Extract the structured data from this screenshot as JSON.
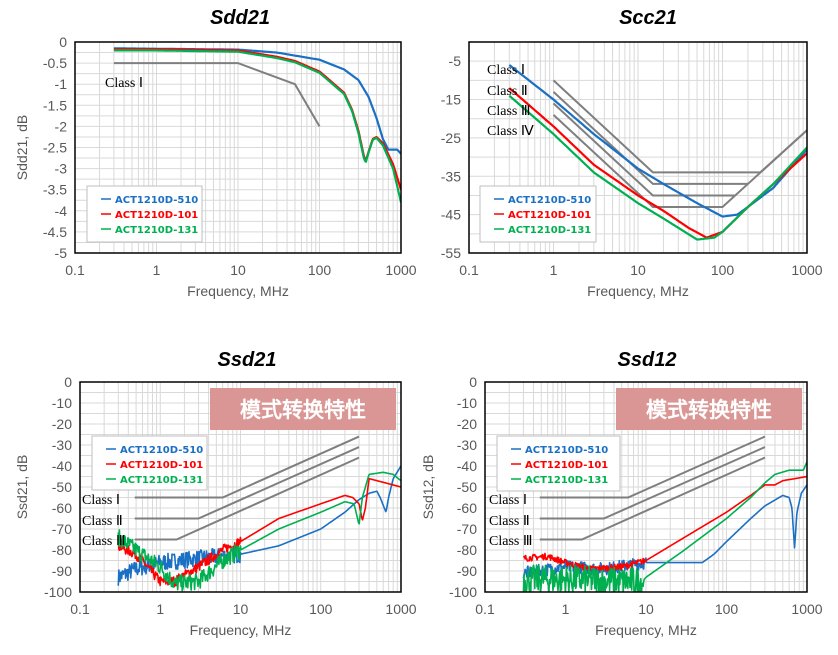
{
  "chart_data": [
    {
      "type": "line",
      "title": "Sdd21",
      "xlabel": "Frequency, MHz",
      "ylabel": "Sdd21, dB",
      "xscale": "log",
      "xlim": [
        0.1,
        1000
      ],
      "xticks": [
        "0.1",
        "1",
        "10",
        "100",
        "1000"
      ],
      "ylim": [
        -5,
        0
      ],
      "yticks": [
        0,
        -0.5,
        -1,
        -1.5,
        -2,
        -2.5,
        -3,
        -3.5,
        -4,
        -4.5,
        -5
      ],
      "grid": true,
      "legend_placement": "bottom-left",
      "series": [
        {
          "name": "ACT1210D-510",
          "color": "#1a70c4",
          "points": [
            [
              0.3,
              -0.15
            ],
            [
              1,
              -0.16
            ],
            [
              10,
              -0.18
            ],
            [
              30,
              -0.25
            ],
            [
              100,
              -0.42
            ],
            [
              200,
              -0.65
            ],
            [
              300,
              -0.9
            ],
            [
              400,
              -1.3
            ],
            [
              500,
              -1.8
            ],
            [
              600,
              -2.3
            ],
            [
              700,
              -2.55
            ],
            [
              800,
              -2.55
            ],
            [
              900,
              -2.55
            ],
            [
              1000,
              -2.65
            ]
          ]
        },
        {
          "name": "ACT1210D-101",
          "color": "#ff0000",
          "points": [
            [
              0.3,
              -0.17
            ],
            [
              1,
              -0.17
            ],
            [
              10,
              -0.2
            ],
            [
              30,
              -0.35
            ],
            [
              50,
              -0.45
            ],
            [
              100,
              -0.7
            ],
            [
              200,
              -1.2
            ],
            [
              250,
              -1.6
            ],
            [
              300,
              -2.1
            ],
            [
              350,
              -2.7
            ],
            [
              370,
              -2.82
            ],
            [
              400,
              -2.6
            ],
            [
              450,
              -2.3
            ],
            [
              500,
              -2.25
            ],
            [
              600,
              -2.4
            ],
            [
              800,
              -2.9
            ],
            [
              1000,
              -3.5
            ]
          ]
        },
        {
          "name": "ACT1210D-131",
          "color": "#00b050",
          "points": [
            [
              0.3,
              -0.2
            ],
            [
              1,
              -0.2
            ],
            [
              10,
              -0.23
            ],
            [
              30,
              -0.38
            ],
            [
              50,
              -0.48
            ],
            [
              100,
              -0.73
            ],
            [
              200,
              -1.23
            ],
            [
              250,
              -1.63
            ],
            [
              300,
              -2.15
            ],
            [
              350,
              -2.75
            ],
            [
              370,
              -2.85
            ],
            [
              400,
              -2.62
            ],
            [
              450,
              -2.32
            ],
            [
              500,
              -2.27
            ],
            [
              600,
              -2.45
            ],
            [
              800,
              -3.0
            ],
            [
              1000,
              -3.8
            ]
          ]
        }
      ],
      "limits": [
        {
          "label": "Class Ⅰ",
          "points": [
            [
              0.3,
              -0.5
            ],
            [
              10,
              -0.5
            ],
            [
              50,
              -1
            ],
            [
              100,
              -2
            ]
          ]
        }
      ]
    },
    {
      "type": "line",
      "title": "Scc21",
      "xlabel": "Frequency, MHz",
      "ylabel": "",
      "xscale": "log",
      "xlim": [
        0.1,
        1000
      ],
      "xticks": [
        "0.1",
        "1",
        "10",
        "100",
        "1000"
      ],
      "ylim": [
        -55,
        0
      ],
      "yticks": [
        -5,
        -15,
        -25,
        -35,
        -45,
        -55
      ],
      "grid": true,
      "legend_placement": "bottom-left",
      "series": [
        {
          "name": "ACT1210D-510",
          "color": "#1a70c4",
          "points": [
            [
              0.3,
              -6
            ],
            [
              1,
              -15
            ],
            [
              3,
              -24
            ],
            [
              10,
              -33
            ],
            [
              20,
              -37
            ],
            [
              50,
              -42
            ],
            [
              100,
              -45.5
            ],
            [
              150,
              -45
            ],
            [
              200,
              -43
            ],
            [
              400,
              -38
            ],
            [
              1000,
              -28
            ]
          ]
        },
        {
          "name": "ACT1210D-101",
          "color": "#ff0000",
          "points": [
            [
              0.3,
              -12
            ],
            [
              1,
              -22
            ],
            [
              3,
              -32
            ],
            [
              10,
              -40
            ],
            [
              20,
              -44
            ],
            [
              40,
              -48.5
            ],
            [
              65,
              -51
            ],
            [
              100,
              -49.5
            ],
            [
              200,
              -43
            ],
            [
              400,
              -37
            ],
            [
              1000,
              -29
            ]
          ]
        },
        {
          "name": "ACT1210D-131",
          "color": "#00b050",
          "points": [
            [
              0.3,
              -14
            ],
            [
              1,
              -24
            ],
            [
              3,
              -34
            ],
            [
              10,
              -42
            ],
            [
              20,
              -46
            ],
            [
              50,
              -51.5
            ],
            [
              80,
              -51
            ],
            [
              100,
              -49.5
            ],
            [
              200,
              -43
            ],
            [
              400,
              -37
            ],
            [
              1000,
              -27.5
            ]
          ]
        }
      ],
      "limits": [
        {
          "label": "Class Ⅰ",
          "points": [
            [
              1,
              -10
            ],
            [
              15,
              -34
            ],
            [
              280,
              -34
            ],
            [
              1000,
              -23
            ]
          ]
        },
        {
          "label": "Class Ⅱ",
          "points": [
            [
              1,
              -13
            ],
            [
              15,
              -37
            ],
            [
              200,
              -37
            ]
          ]
        },
        {
          "label": "Class Ⅲ",
          "points": [
            [
              1,
              -16
            ],
            [
              15,
              -40
            ],
            [
              140,
              -40
            ]
          ]
        },
        {
          "label": "Class Ⅳ",
          "points": [
            [
              1,
              -19
            ],
            [
              15,
              -43
            ],
            [
              100,
              -43
            ],
            [
              1000,
              -23
            ]
          ]
        }
      ]
    },
    {
      "type": "line",
      "title": "Ssd21",
      "xlabel": "Frequency, MHz",
      "ylabel": "Ssd21, dB",
      "xscale": "log",
      "xlim": [
        0.1,
        1000
      ],
      "xticks": [
        "0.1",
        "1",
        "10",
        "100",
        "1000"
      ],
      "ylim": [
        -100,
        0
      ],
      "yticks": [
        0,
        -10,
        -20,
        -30,
        -40,
        -50,
        -60,
        -70,
        -80,
        -90,
        -100
      ],
      "grid": true,
      "legend_placement": "top-left",
      "banner": "模式转换特性",
      "series": [
        {
          "name": "ACT1210D-510",
          "color": "#1a70c4",
          "noise": {
            "below": 10,
            "amplitude": 4
          },
          "points": [
            [
              0.3,
              -93
            ],
            [
              0.5,
              -89
            ],
            [
              1,
              -86
            ],
            [
              3,
              -84
            ],
            [
              10,
              -82
            ],
            [
              30,
              -78
            ],
            [
              100,
              -70
            ],
            [
              200,
              -62
            ],
            [
              300,
              -56
            ],
            [
              400,
              -53
            ],
            [
              500,
              -52
            ],
            [
              550,
              -55
            ],
            [
              650,
              -62
            ],
            [
              700,
              -55
            ],
            [
              800,
              -46
            ],
            [
              1000,
              -40
            ]
          ]
        },
        {
          "name": "ACT1210D-101",
          "color": "#ff0000",
          "noise": {
            "below": 10,
            "amplitude": 2.5
          },
          "points": [
            [
              0.3,
              -78
            ],
            [
              0.5,
              -82
            ],
            [
              1,
              -95
            ],
            [
              1.5,
              -95
            ],
            [
              3,
              -88
            ],
            [
              6,
              -80
            ],
            [
              10,
              -76
            ],
            [
              30,
              -65
            ],
            [
              100,
              -58
            ],
            [
              200,
              -54
            ],
            [
              250,
              -55
            ],
            [
              300,
              -58
            ],
            [
              330,
              -66
            ],
            [
              360,
              -60
            ],
            [
              400,
              -46
            ],
            [
              1000,
              -50
            ]
          ]
        },
        {
          "name": "ACT1210D-131",
          "color": "#00b050",
          "noise": {
            "below": 10,
            "amplitude": 4
          },
          "points": [
            [
              0.3,
              -74
            ],
            [
              0.5,
              -80
            ],
            [
              1,
              -88
            ],
            [
              1.5,
              -96
            ],
            [
              3,
              -95
            ],
            [
              6,
              -85
            ],
            [
              10,
              -80
            ],
            [
              30,
              -70
            ],
            [
              100,
              -62
            ],
            [
              200,
              -57
            ],
            [
              260,
              -58
            ],
            [
              300,
              -68
            ],
            [
              330,
              -55
            ],
            [
              400,
              -44
            ],
            [
              600,
              -43
            ],
            [
              800,
              -44
            ],
            [
              1000,
              -47
            ]
          ]
        }
      ],
      "limits": [
        {
          "label": "Class Ⅰ",
          "points": [
            [
              0.48,
              -55
            ],
            [
              6,
              -55
            ],
            [
              300,
              -26
            ]
          ]
        },
        {
          "label": "Class Ⅱ",
          "points": [
            [
              0.48,
              -65
            ],
            [
              3,
              -65
            ],
            [
              300,
              -31
            ]
          ]
        },
        {
          "label": "Class Ⅲ",
          "points": [
            [
              0.48,
              -75
            ],
            [
              1.6,
              -75
            ],
            [
              300,
              -36
            ]
          ]
        }
      ]
    },
    {
      "type": "line",
      "title": "Ssd12",
      "xlabel": "Frequency, MHz",
      "ylabel": "Ssd12, dB",
      "xscale": "log",
      "xlim": [
        0.1,
        1000
      ],
      "xticks": [
        "0.1",
        "1",
        "10",
        "100",
        "1000"
      ],
      "ylim": [
        -100,
        0
      ],
      "yticks": [
        0,
        -10,
        -20,
        -30,
        -40,
        -50,
        -60,
        -70,
        -80,
        -90,
        -100
      ],
      "grid": true,
      "legend_placement": "top-left",
      "banner": "模式转换特性",
      "series": [
        {
          "name": "ACT1210D-510",
          "color": "#1a70c4",
          "noise": {
            "below": 10,
            "amplitude": 3
          },
          "points": [
            [
              0.3,
              -91
            ],
            [
              1,
              -88
            ],
            [
              3,
              -89
            ],
            [
              10,
              -86
            ],
            [
              50,
              -86
            ],
            [
              70,
              -82
            ],
            [
              100,
              -76
            ],
            [
              200,
              -65
            ],
            [
              300,
              -59
            ],
            [
              500,
              -54
            ],
            [
              600,
              -55
            ],
            [
              650,
              -60
            ],
            [
              700,
              -79
            ],
            [
              750,
              -62
            ],
            [
              850,
              -53
            ],
            [
              1000,
              -49
            ]
          ]
        },
        {
          "name": "ACT1210D-101",
          "color": "#ff0000",
          "noise": {
            "below": 10,
            "amplitude": 1.5
          },
          "points": [
            [
              0.3,
              -84
            ],
            [
              0.6,
              -83
            ],
            [
              1,
              -86
            ],
            [
              2,
              -89
            ],
            [
              5,
              -88
            ],
            [
              10,
              -85
            ],
            [
              30,
              -74
            ],
            [
              100,
              -62
            ],
            [
              200,
              -54
            ],
            [
              300,
              -49
            ],
            [
              400,
              -49
            ],
            [
              500,
              -47
            ],
            [
              1000,
              -45
            ]
          ]
        },
        {
          "name": "ACT1210D-131",
          "color": "#00b050",
          "noise": {
            "below": 9.5,
            "amplitude": 7
          },
          "points": [
            [
              0.3,
              -94
            ],
            [
              1,
              -94
            ],
            [
              5,
              -95
            ],
            [
              9,
              -95
            ],
            [
              10,
              -93
            ],
            [
              30,
              -80
            ],
            [
              100,
              -65
            ],
            [
              200,
              -55
            ],
            [
              300,
              -48
            ],
            [
              400,
              -44
            ],
            [
              600,
              -42
            ],
            [
              900,
              -42
            ],
            [
              1000,
              -38
            ]
          ]
        }
      ],
      "limits": [
        {
          "label": "Class Ⅰ",
          "points": [
            [
              0.48,
              -55
            ],
            [
              6,
              -55
            ],
            [
              300,
              -26
            ]
          ]
        },
        {
          "label": "Class Ⅱ",
          "points": [
            [
              0.48,
              -65
            ],
            [
              3,
              -65
            ],
            [
              300,
              -31
            ]
          ]
        },
        {
          "label": "Class Ⅲ",
          "points": [
            [
              0.48,
              -75
            ],
            [
              1.6,
              -75
            ],
            [
              300,
              -36
            ]
          ]
        }
      ]
    }
  ]
}
